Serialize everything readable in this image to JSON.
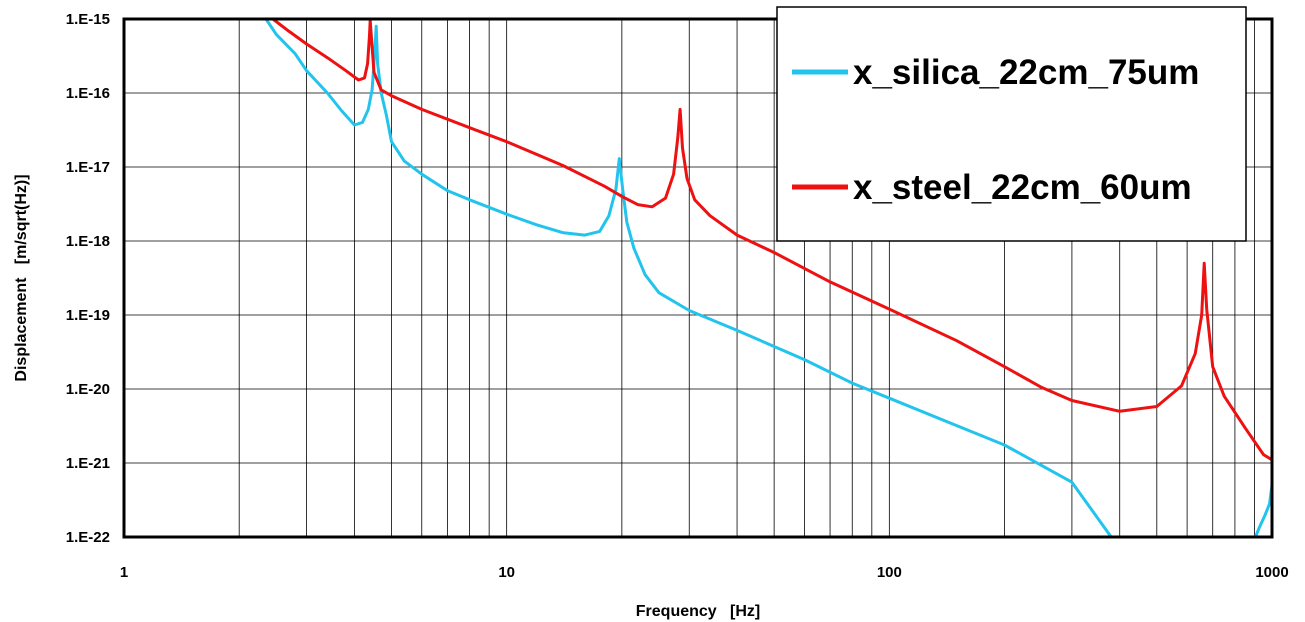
{
  "chart_data": {
    "type": "line",
    "xlabel": "Frequency   [Hz]",
    "ylabel": "Displacement   [m/sqrt(Hz)]",
    "x_scale": "log",
    "y_scale": "log",
    "xlim": [
      1,
      1000
    ],
    "ylim": [
      1e-22,
      1e-15
    ],
    "x_tick_labels": [
      "1",
      "10",
      "100",
      "1000"
    ],
    "y_tick_labels": [
      "1.E-22",
      "1.E-21",
      "1.E-20",
      "1.E-19",
      "1.E-18",
      "1.E-17",
      "1.E-16",
      "1.E-15"
    ],
    "grid": true,
    "legend_position": "top-right",
    "series": [
      {
        "name": "x_silica_22cm_75um",
        "color": "#22c4ee",
        "points": [
          [
            2.35,
            1e-15
          ],
          [
            2.5,
            6.2e-16
          ],
          [
            2.8,
            3.4e-16
          ],
          [
            3.0,
            2e-16
          ],
          [
            3.4,
            1e-16
          ],
          [
            3.7,
            5.8e-17
          ],
          [
            4.0,
            3.7e-17
          ],
          [
            4.2,
            4e-17
          ],
          [
            4.35,
            6e-17
          ],
          [
            4.45,
            1.1e-16
          ],
          [
            4.52,
            3.5e-16
          ],
          [
            4.56,
            8e-16
          ],
          [
            4.6,
            2.5e-16
          ],
          [
            4.7,
            1e-16
          ],
          [
            4.85,
            5e-17
          ],
          [
            5.0,
            2.2e-17
          ],
          [
            5.4,
            1.2e-17
          ],
          [
            6.0,
            8e-18
          ],
          [
            7.0,
            4.8e-18
          ],
          [
            8.0,
            3.6e-18
          ],
          [
            10.0,
            2.3e-18
          ],
          [
            12.0,
            1.65e-18
          ],
          [
            14.0,
            1.3e-18
          ],
          [
            16.0,
            1.2e-18
          ],
          [
            17.5,
            1.35e-18
          ],
          [
            18.5,
            2.2e-18
          ],
          [
            19.3,
            5e-18
          ],
          [
            19.7,
            1.3e-17
          ],
          [
            20.1,
            5e-18
          ],
          [
            20.6,
            1.8e-18
          ],
          [
            21.5,
            8e-19
          ],
          [
            23.0,
            3.5e-19
          ],
          [
            25.0,
            2e-19
          ],
          [
            30.0,
            1.15e-19
          ],
          [
            40.0,
            6.2e-20
          ],
          [
            60.0,
            2.5e-20
          ],
          [
            80.0,
            1.2e-20
          ],
          [
            100.0,
            7.5e-21
          ],
          [
            150.0,
            3.2e-21
          ],
          [
            200.0,
            1.75e-21
          ],
          [
            300.0,
            5.5e-22
          ],
          [
            380.0,
            1e-22
          ]
        ]
      },
      {
        "name": "x_steel_22cm_60um",
        "color": "#ee1111",
        "points": [
          [
            2.45,
            1e-15
          ],
          [
            2.7,
            6.8e-16
          ],
          [
            3.0,
            4.6e-16
          ],
          [
            3.4,
            3e-16
          ],
          [
            3.8,
            2e-16
          ],
          [
            4.1,
            1.5e-16
          ],
          [
            4.25,
            1.6e-16
          ],
          [
            4.33,
            2.5e-16
          ],
          [
            4.38,
            6e-16
          ],
          [
            4.4,
            9.5e-16
          ],
          [
            4.44,
            5e-16
          ],
          [
            4.5,
            1.9e-16
          ],
          [
            4.7,
            1.1e-16
          ],
          [
            5.0,
            9.2e-17
          ],
          [
            6.0,
            6e-17
          ],
          [
            8.0,
            3.4e-17
          ],
          [
            10.0,
            2.2e-17
          ],
          [
            14.0,
            1.05e-17
          ],
          [
            18.0,
            5.5e-18
          ],
          [
            20.0,
            4e-18
          ],
          [
            22.0,
            3.1e-18
          ],
          [
            24.0,
            2.9e-18
          ],
          [
            26.0,
            3.8e-18
          ],
          [
            27.3,
            8e-18
          ],
          [
            28.0,
            2.5e-17
          ],
          [
            28.4,
            6e-17
          ],
          [
            28.8,
            1.8e-17
          ],
          [
            29.6,
            7e-18
          ],
          [
            31.0,
            3.6e-18
          ],
          [
            34.0,
            2.2e-18
          ],
          [
            40.0,
            1.2e-18
          ],
          [
            50.0,
            7e-19
          ],
          [
            70.0,
            2.8e-19
          ],
          [
            100.0,
            1.2e-19
          ],
          [
            150.0,
            4.5e-20
          ],
          [
            200.0,
            2e-20
          ],
          [
            250.0,
            1.05e-20
          ],
          [
            300.0,
            7e-21
          ],
          [
            400.0,
            5e-21
          ],
          [
            500.0,
            5.8e-21
          ],
          [
            580.0,
            1.1e-20
          ],
          [
            630.0,
            3e-20
          ],
          [
            655.0,
            1e-19
          ],
          [
            665.0,
            5e-19
          ],
          [
            675.0,
            1.2e-19
          ],
          [
            700.0,
            2e-20
          ],
          [
            750.0,
            8e-21
          ],
          [
            850.0,
            3e-21
          ],
          [
            950.0,
            1.3e-21
          ],
          [
            1000.0,
            1.1e-21
          ]
        ]
      },
      {
        "name": "x_silica_22cm_75um",
        "color": "#22c4ee",
        "points": [
          [
            905.0,
            1e-22
          ],
          [
            930.0,
            1.4e-22
          ],
          [
            960.0,
            2e-22
          ],
          [
            985.0,
            2.8e-22
          ],
          [
            1000.0,
            5e-22
          ]
        ]
      }
    ]
  }
}
